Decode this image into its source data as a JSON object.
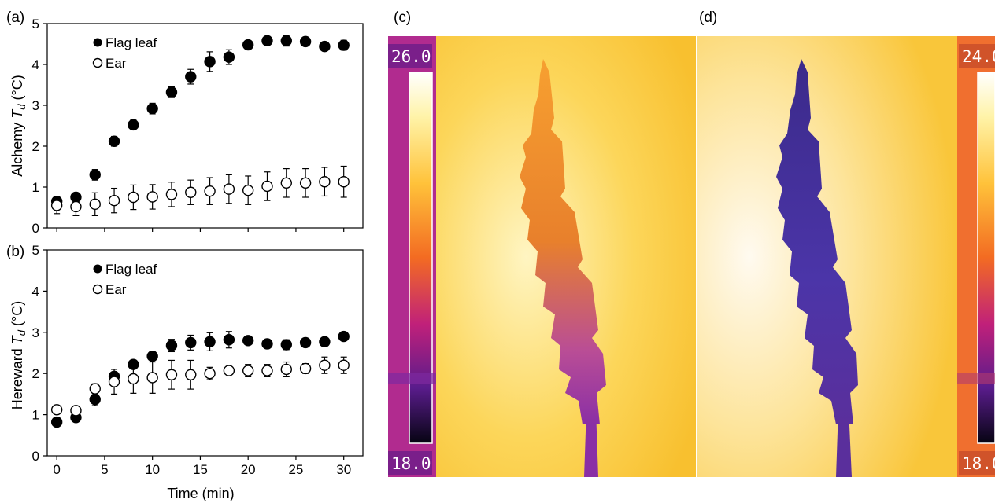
{
  "figure": {
    "panels": {
      "a": "(a)",
      "b": "(b)",
      "c": "(c)",
      "d": "(d)"
    },
    "x_axis_title": "Time (min)"
  },
  "thermal": {
    "c": {
      "max_label": "26.0",
      "min_label": "18.0"
    },
    "d": {
      "max_label": "24.0",
      "min_label": "18.0"
    },
    "colors": {
      "background": "#f9c63a",
      "ear_c": "#ee8a2a",
      "ear_d": "#4b2f9a",
      "stem": "#8a2fa5"
    }
  },
  "chart_data": [
    {
      "type": "scatter",
      "panel": "(a)",
      "ylabel_prefix": "Alchemy ",
      "ylabel_var": "T",
      "ylabel_sub": "d",
      "ylabel_unit": " (°C)",
      "xlabel": "",
      "xlim": [
        -1,
        32
      ],
      "ylim": [
        0,
        5
      ],
      "xticks": [
        0,
        5,
        10,
        15,
        20,
        25,
        30
      ],
      "yticks": [
        0,
        1,
        2,
        3,
        4,
        5
      ],
      "grid": false,
      "legend_position": "top-left",
      "series": [
        {
          "name": "Flag leaf",
          "marker": "filled-circle",
          "x": [
            0,
            2,
            4,
            6,
            8,
            10,
            12,
            14,
            16,
            18,
            20,
            22,
            24,
            26,
            28,
            30
          ],
          "y": [
            0.65,
            0.75,
            1.3,
            2.12,
            2.52,
            2.92,
            3.32,
            3.7,
            4.07,
            4.18,
            4.48,
            4.58,
            4.58,
            4.56,
            4.44,
            4.47
          ],
          "err": [
            0.05,
            0.05,
            0.13,
            0.12,
            0.12,
            0.13,
            0.13,
            0.18,
            0.24,
            0.18,
            0.08,
            0.1,
            0.13,
            0.08,
            0.09,
            0.12
          ]
        },
        {
          "name": "Ear",
          "marker": "open-circle",
          "x": [
            0,
            2,
            4,
            6,
            8,
            10,
            12,
            14,
            16,
            18,
            20,
            22,
            24,
            26,
            28,
            30
          ],
          "y": [
            0.55,
            0.52,
            0.58,
            0.67,
            0.75,
            0.76,
            0.82,
            0.87,
            0.9,
            0.95,
            0.92,
            1.02,
            1.1,
            1.1,
            1.13,
            1.13
          ],
          "err": [
            0.2,
            0.22,
            0.28,
            0.3,
            0.3,
            0.3,
            0.3,
            0.3,
            0.33,
            0.35,
            0.35,
            0.35,
            0.35,
            0.35,
            0.35,
            0.38
          ]
        }
      ]
    },
    {
      "type": "scatter",
      "panel": "(b)",
      "ylabel_prefix": "Hereward ",
      "ylabel_var": "T",
      "ylabel_sub": "d",
      "ylabel_unit": " (°C)",
      "xlabel": "Time (min)",
      "xlim": [
        -1,
        32
      ],
      "ylim": [
        0,
        5
      ],
      "xticks": [
        0,
        5,
        10,
        15,
        20,
        25,
        30
      ],
      "yticks": [
        0,
        1,
        2,
        3,
        4,
        5
      ],
      "grid": false,
      "legend_position": "top-left",
      "series": [
        {
          "name": "Flag leaf",
          "marker": "filled-circle",
          "x": [
            0,
            2,
            4,
            6,
            8,
            10,
            12,
            14,
            16,
            18,
            20,
            22,
            24,
            26,
            28,
            30
          ],
          "y": [
            0.82,
            0.93,
            1.37,
            1.93,
            2.22,
            2.42,
            2.68,
            2.75,
            2.77,
            2.82,
            2.8,
            2.72,
            2.7,
            2.75,
            2.77,
            2.9
          ],
          "err": [
            0.05,
            0.05,
            0.15,
            0.1,
            0.08,
            0.1,
            0.15,
            0.18,
            0.22,
            0.2,
            0.06,
            0.07,
            0.12,
            0.08,
            0.1,
            0.1
          ]
        },
        {
          "name": "Ear",
          "marker": "open-circle",
          "x": [
            0,
            2,
            4,
            6,
            8,
            10,
            12,
            14,
            16,
            18,
            20,
            22,
            24,
            26,
            28,
            30
          ],
          "y": [
            1.12,
            1.1,
            1.63,
            1.8,
            1.87,
            1.9,
            1.97,
            1.97,
            2.0,
            2.07,
            2.07,
            2.07,
            2.1,
            2.12,
            2.2,
            2.2
          ],
          "err": [
            0.05,
            0.05,
            0.12,
            0.3,
            0.35,
            0.38,
            0.35,
            0.35,
            0.15,
            0.1,
            0.15,
            0.15,
            0.18,
            0.12,
            0.2,
            0.2
          ]
        }
      ]
    }
  ]
}
